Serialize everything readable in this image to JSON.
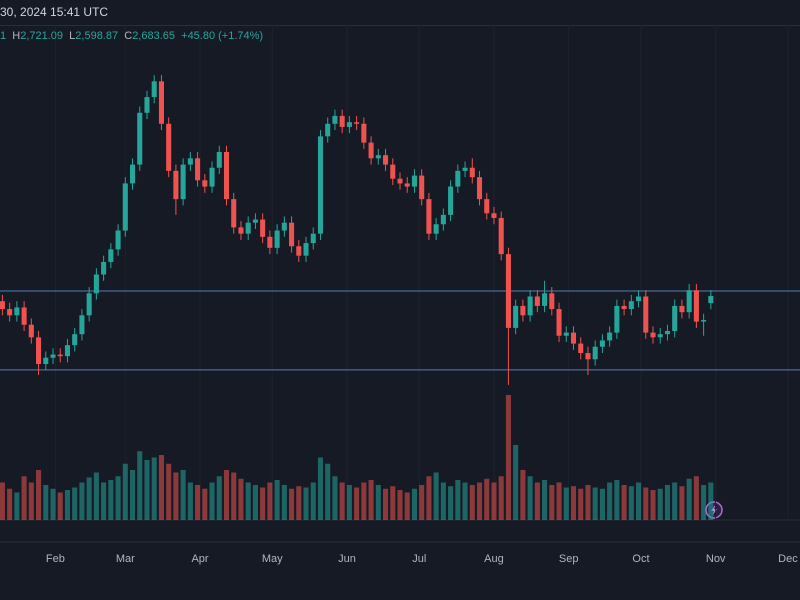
{
  "header": {
    "timestamp": "30, 2024 15:41 UTC"
  },
  "legend": {
    "open_tail": "1",
    "high_key": "H",
    "high": "2,721.09",
    "low_key": "L",
    "low": "2,598.87",
    "close_key": "C",
    "close": "2,683.65",
    "change": "+45.80 (+1.74%)"
  },
  "chart_data": {
    "type": "candlestick",
    "up_color": "#26a69a",
    "down_color": "#ef5350",
    "xlim": [
      9,
      341
    ],
    "xticks": [
      {
        "value": 32,
        "label": "Feb"
      },
      {
        "value": 61,
        "label": "Mar"
      },
      {
        "value": 92,
        "label": "Apr"
      },
      {
        "value": 122,
        "label": "May"
      },
      {
        "value": 153,
        "label": "Jun"
      },
      {
        "value": 183,
        "label": "Jul"
      },
      {
        "value": 214,
        "label": "Aug"
      },
      {
        "value": 245,
        "label": "Sep"
      },
      {
        "value": 275,
        "label": "Oct"
      },
      {
        "value": 306,
        "label": "Nov"
      },
      {
        "value": 336,
        "label": "Dec"
      }
    ],
    "ylim": [
      1766,
      4409
    ],
    "hlines": [
      2715,
      2213
    ],
    "hline_color": "#4f7fb8",
    "volume_lim": [
      0,
      100
    ],
    "x": [
      10,
      13,
      16,
      19,
      22,
      25,
      28,
      31,
      34,
      37,
      40,
      43,
      46,
      49,
      52,
      55,
      58,
      61,
      64,
      67,
      70,
      73,
      76,
      79,
      82,
      85,
      88,
      91,
      94,
      97,
      100,
      103,
      106,
      109,
      112,
      115,
      118,
      121,
      124,
      127,
      130,
      133,
      136,
      139,
      142,
      145,
      148,
      151,
      154,
      157,
      160,
      163,
      166,
      169,
      172,
      175,
      178,
      181,
      184,
      187,
      190,
      193,
      196,
      199,
      202,
      205,
      208,
      211,
      214,
      217,
      220,
      223,
      226,
      229,
      232,
      235,
      238,
      241,
      244,
      247,
      250,
      253,
      256,
      259,
      262,
      265,
      268,
      271,
      274,
      277,
      280,
      283,
      286,
      289,
      292,
      295,
      298,
      301,
      304
    ],
    "open": [
      2650,
      2600,
      2560,
      2610,
      2500,
      2420,
      2250,
      2290,
      2310,
      2300,
      2370,
      2440,
      2560,
      2700,
      2820,
      2900,
      2980,
      3100,
      3400,
      3520,
      3850,
      3950,
      4050,
      3780,
      3480,
      3300,
      3520,
      3560,
      3420,
      3380,
      3500,
      3600,
      3300,
      3120,
      3080,
      3150,
      3170,
      3060,
      2990,
      3100,
      3150,
      3000,
      2940,
      3020,
      3080,
      3700,
      3780,
      3830,
      3760,
      3790,
      3780,
      3660,
      3560,
      3580,
      3520,
      3430,
      3400,
      3380,
      3450,
      3300,
      3080,
      3140,
      3200,
      3380,
      3480,
      3500,
      3440,
      3300,
      3210,
      3180,
      2950,
      2480,
      2620,
      2560,
      2680,
      2620,
      2700,
      2600,
      2430,
      2450,
      2380,
      2320,
      2280,
      2360,
      2400,
      2450,
      2620,
      2600,
      2650,
      2680,
      2450,
      2420,
      2440,
      2460,
      2620,
      2580,
      2720,
      2520,
      2637.85
    ],
    "high": [
      2690,
      2640,
      2650,
      2650,
      2540,
      2460,
      2330,
      2350,
      2350,
      2410,
      2480,
      2600,
      2740,
      2860,
      2940,
      3020,
      3140,
      3440,
      3560,
      3890,
      3990,
      4090,
      4090,
      3820,
      3520,
      3560,
      3600,
      3600,
      3460,
      3540,
      3640,
      3640,
      3340,
      3160,
      3190,
      3210,
      3210,
      3100,
      3140,
      3190,
      3190,
      3040,
      3060,
      3120,
      3740,
      3820,
      3870,
      3870,
      3830,
      3830,
      3820,
      3700,
      3620,
      3620,
      3560,
      3470,
      3440,
      3490,
      3490,
      3340,
      3180,
      3240,
      3420,
      3520,
      3540,
      3560,
      3480,
      3340,
      3250,
      3220,
      2990,
      2660,
      2660,
      2720,
      2720,
      2780,
      2740,
      2640,
      2490,
      2490,
      2420,
      2360,
      2400,
      2440,
      2490,
      2660,
      2660,
      2690,
      2720,
      2720,
      2490,
      2480,
      2500,
      2660,
      2660,
      2760,
      2760,
      2570,
      2721.09
    ],
    "low": [
      2560,
      2520,
      2520,
      2460,
      2380,
      2180,
      2210,
      2250,
      2260,
      2260,
      2330,
      2400,
      2520,
      2660,
      2780,
      2860,
      2940,
      3060,
      3360,
      3480,
      3810,
      3910,
      3740,
      3440,
      3200,
      3260,
      3480,
      3380,
      3340,
      3340,
      3460,
      3260,
      3080,
      3040,
      3040,
      3110,
      3020,
      2950,
      2950,
      3060,
      2960,
      2900,
      2900,
      2980,
      3040,
      3660,
      3740,
      3720,
      3720,
      3740,
      3620,
      3520,
      3520,
      3480,
      3390,
      3360,
      3340,
      3340,
      3260,
      3040,
      3040,
      3100,
      3160,
      3340,
      3440,
      3400,
      3260,
      3170,
      3140,
      2910,
      2117,
      2440,
      2520,
      2520,
      2580,
      2580,
      2560,
      2390,
      2390,
      2340,
      2280,
      2180,
      2240,
      2320,
      2360,
      2410,
      2560,
      2560,
      2610,
      2410,
      2380,
      2380,
      2400,
      2420,
      2540,
      2540,
      2480,
      2430,
      2598.87
    ],
    "close": [
      2600,
      2560,
      2610,
      2500,
      2420,
      2250,
      2290,
      2310,
      2300,
      2370,
      2440,
      2560,
      2700,
      2820,
      2900,
      2980,
      3100,
      3400,
      3520,
      3850,
      3950,
      4050,
      3780,
      3480,
      3300,
      3520,
      3560,
      3420,
      3380,
      3500,
      3600,
      3300,
      3120,
      3080,
      3150,
      3170,
      3060,
      2990,
      3100,
      3150,
      3000,
      2940,
      3020,
      3080,
      3700,
      3780,
      3830,
      3760,
      3790,
      3780,
      3660,
      3560,
      3580,
      3520,
      3430,
      3400,
      3380,
      3450,
      3300,
      3080,
      3140,
      3200,
      3380,
      3480,
      3500,
      3440,
      3300,
      3210,
      3180,
      2950,
      2480,
      2620,
      2560,
      2680,
      2620,
      2700,
      2600,
      2430,
      2450,
      2380,
      2320,
      2280,
      2360,
      2400,
      2450,
      2620,
      2600,
      2650,
      2680,
      2450,
      2420,
      2440,
      2460,
      2620,
      2580,
      2720,
      2520,
      2530,
      2683.65
    ],
    "volume": [
      30,
      25,
      22,
      35,
      30,
      40,
      28,
      25,
      22,
      24,
      26,
      30,
      34,
      38,
      30,
      32,
      35,
      45,
      40,
      55,
      48,
      50,
      52,
      45,
      38,
      40,
      30,
      28,
      25,
      30,
      35,
      40,
      38,
      33,
      30,
      28,
      26,
      30,
      32,
      28,
      25,
      27,
      26,
      30,
      50,
      45,
      35,
      30,
      28,
      26,
      30,
      32,
      28,
      25,
      27,
      24,
      22,
      25,
      28,
      35,
      38,
      30,
      27,
      32,
      30,
      28,
      30,
      33,
      30,
      35,
      100,
      60,
      40,
      35,
      30,
      32,
      28,
      30,
      26,
      27,
      25,
      28,
      26,
      25,
      30,
      32,
      28,
      27,
      30,
      26,
      24,
      25,
      28,
      30,
      27,
      33,
      35,
      28,
      30
    ]
  }
}
